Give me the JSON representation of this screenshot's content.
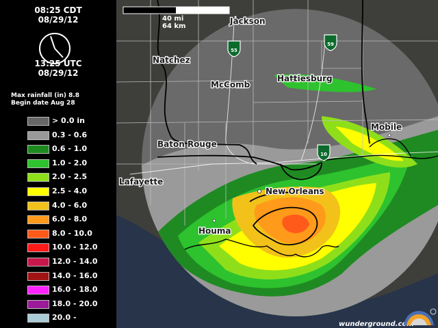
{
  "time_local": "08:25 CDT",
  "date_local": "08/29/12",
  "time_utc": "13:25 UTC",
  "date_utc": "08/29/12",
  "max_rainfall_label": "Max rainfall (in)",
  "max_rainfall_value": "8.8",
  "begin_date_label": "Begin date",
  "begin_date_value": "Aug 28",
  "legend": [
    {
      "label": "> 0.0  in",
      "color": "#666666"
    },
    {
      "label": "0.3  -  0.6",
      "color": "#999999"
    },
    {
      "label": "0.6  -  1.0",
      "color": "#1e8a1e"
    },
    {
      "label": "1.0  -  2.0",
      "color": "#2ec22e"
    },
    {
      "label": "2.0  -  2.5",
      "color": "#8edf1a"
    },
    {
      "label": "2.5  -  4.0",
      "color": "#ffff00"
    },
    {
      "label": "4.0  -  6.0",
      "color": "#f2c21a"
    },
    {
      "label": "6.0  -  8.0",
      "color": "#ff9a1a"
    },
    {
      "label": "8.0  -  10.0",
      "color": "#ff5a1a"
    },
    {
      "label": "10.0  -  12.0",
      "color": "#ff1a1a"
    },
    {
      "label": "12.0  -  14.0",
      "color": "#c8164a"
    },
    {
      "label": "14.0  -  16.0",
      "color": "#a01414"
    },
    {
      "label": "16.0  -  18.0",
      "color": "#ff22ff"
    },
    {
      "label": "18.0  -  20.0",
      "color": "#9a1a9a"
    },
    {
      "label": "20.0  -",
      "color": "#aaccd6"
    }
  ],
  "scale": {
    "miles": "40 mi",
    "km": "64 km"
  },
  "cities": {
    "jackson": "Jackson",
    "natchez": "Natchez",
    "mccomb": "McComb",
    "hattiesburg": "Hattiesburg",
    "mobile": "Mobile",
    "baton_rouge": "Baton Rouge",
    "lafayette": "Lafayette",
    "new_orleans": "New Orleans",
    "houma": "Houma"
  },
  "shields": {
    "i55": "55",
    "i59": "59",
    "i10": "10"
  },
  "credit": "wunderground.com",
  "colors": {
    "background": "#000000",
    "land": "#3e3f3b",
    "water": "#27344a"
  }
}
